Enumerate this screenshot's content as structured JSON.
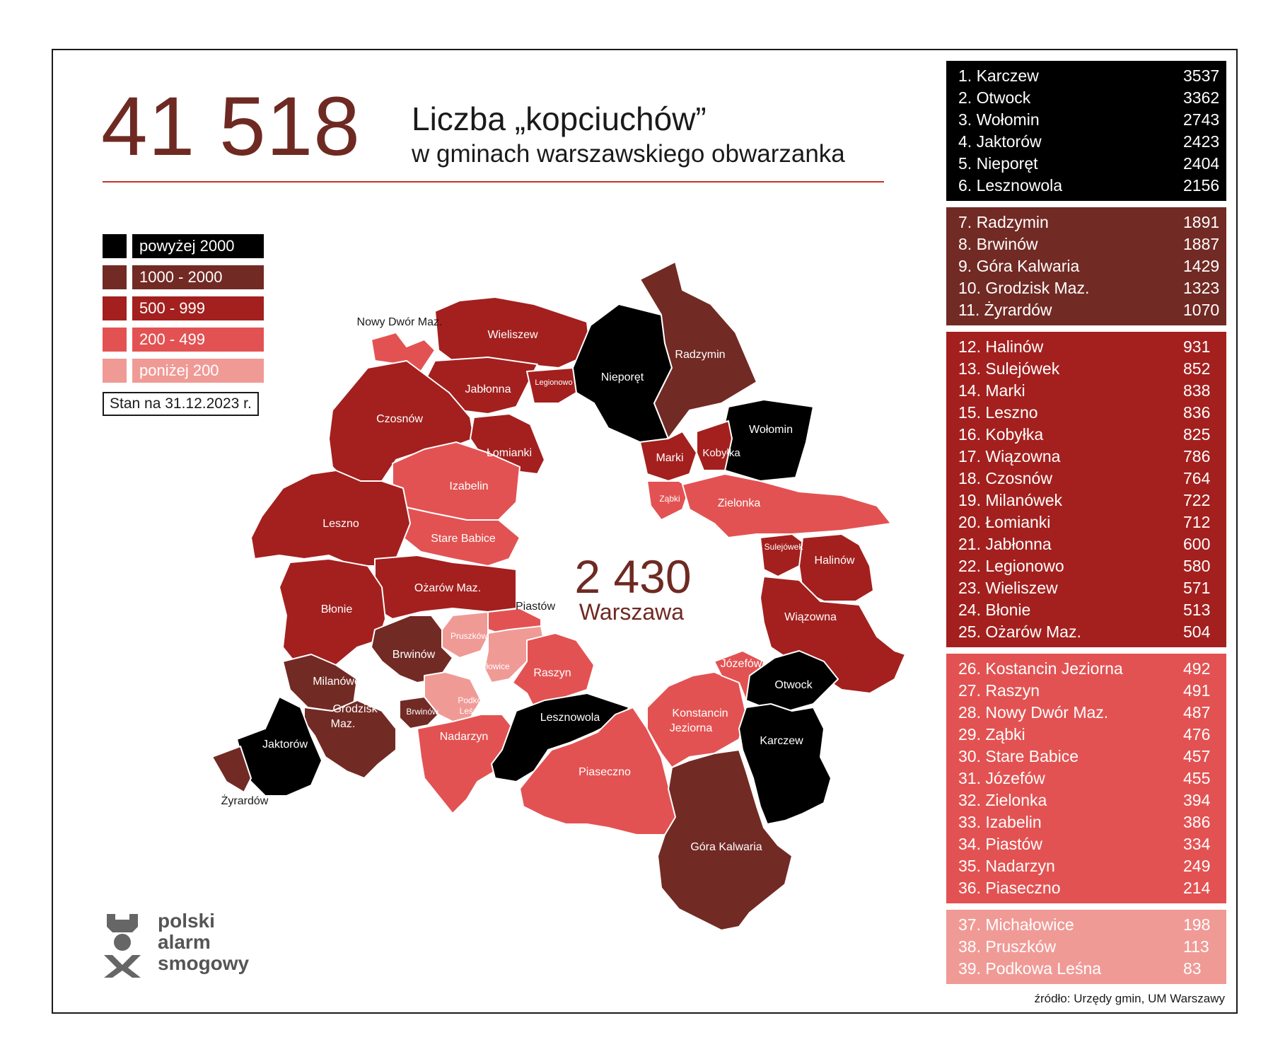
{
  "header": {
    "big_number": "41 518",
    "title": "Liczba „kopciuchów”",
    "subtitle": "w gminach warszawskiego obwarzanka"
  },
  "colors": {
    "above_2000": "#000000",
    "range_1000_2000": "#722a24",
    "range_500_999": "#a3201e",
    "range_200_499": "#e35252",
    "below_200": "#f09a96",
    "accent_red": "#c8322b",
    "warsaw_text": "#6e2a22"
  },
  "legend": {
    "items": [
      {
        "label": "powyżej 2000",
        "color": "#000000"
      },
      {
        "label": "1000 - 2000",
        "color": "#722a24"
      },
      {
        "label": "500 - 999",
        "color": "#a3201e"
      },
      {
        "label": "200 - 499",
        "color": "#e35252"
      },
      {
        "label": "poniżej 200",
        "color": "#f09a96"
      }
    ],
    "date_note": "Stan na 31.12.2023 r."
  },
  "warsaw": {
    "value": "2 430",
    "label": "Warszawa"
  },
  "map_labels": {
    "nowy_dwor": "Nowy Dwór Maz.",
    "wieliszew": "Wieliszew",
    "jablonna": "Jabłonna",
    "legionowo": "Legionowo",
    "nieporet": "Nieporęt",
    "radzymin": "Radzymin",
    "czosnow": "Czosnów",
    "lomianki": "Łomianki",
    "wolomin": "Wołomin",
    "marki": "Marki",
    "kobylka": "Kobyłka",
    "zabki": "Ząbki",
    "zielonka": "Zielonka",
    "izabelin": "Izabelin",
    "stare_babice": "Stare Babice",
    "leszno": "Leszno",
    "sulejowek": "Sulejówek",
    "halinow": "Halinów",
    "ozarow": "Ożarów Maz.",
    "piastow": "Piastów",
    "blonie": "Błonie",
    "wiazowna": "Wiązowna",
    "pruszkow": "Pruszków",
    "brwinow": "Brwinów",
    "michalowice": "Michałowice",
    "raszyn": "Raszyn",
    "jozefow": "Józefów",
    "otwock": "Otwock",
    "milanowek": "Milanówek",
    "grodzisk_1": "Grodzisk",
    "grodzisk_2": "Maz.",
    "brwinow_town": "Brwinów",
    "podkowa_1": "Podkowa",
    "podkowa_2": "Leśna",
    "lesznowola": "Lesznowola",
    "konstancin_1": "Konstancin",
    "konstancin_2": "Jeziorna",
    "jaktorow": "Jaktorów",
    "nadarzyn": "Nadarzyn",
    "piaseczno": "Piaseczno",
    "karczew": "Karczew",
    "zyrardow": "Żyrardów",
    "gora_kalwaria": "Góra Kalwaria"
  },
  "ranking": [
    {
      "color": "#000000",
      "text_color": "#ffffff",
      "items": [
        {
          "name": "1. Karczew",
          "value": "3537"
        },
        {
          "name": "2. Otwock",
          "value": "3362"
        },
        {
          "name": "3. Wołomin",
          "value": "2743"
        },
        {
          "name": "4. Jaktorów",
          "value": "2423"
        },
        {
          "name": "5. Nieporęt",
          "value": "2404"
        },
        {
          "name": "6. Lesznowola",
          "value": "2156"
        }
      ]
    },
    {
      "color": "#722a24",
      "text_color": "#ffffff",
      "items": [
        {
          "name": "7. Radzymin",
          "value": "1891"
        },
        {
          "name": "8. Brwinów",
          "value": "1887"
        },
        {
          "name": "9. Góra Kalwaria",
          "value": "1429"
        },
        {
          "name": "10. Grodzisk Maz.",
          "value": "1323"
        },
        {
          "name": "11. Żyrardów",
          "value": "1070"
        }
      ]
    },
    {
      "color": "#a3201e",
      "text_color": "#ffffff",
      "items": [
        {
          "name": "12. Halinów",
          "value": "931"
        },
        {
          "name": "13. Sulejówek",
          "value": "852"
        },
        {
          "name": "14. Marki",
          "value": "838"
        },
        {
          "name": "15. Leszno",
          "value": "836"
        },
        {
          "name": "16. Kobyłka",
          "value": "825"
        },
        {
          "name": "17. Wiązowna",
          "value": "786"
        },
        {
          "name": "18. Czosnów",
          "value": "764"
        },
        {
          "name": "19. Milanówek",
          "value": "722"
        },
        {
          "name": "20. Łomianki",
          "value": "712"
        },
        {
          "name": "21. Jabłonna",
          "value": "600"
        },
        {
          "name": "22. Legionowo",
          "value": "580"
        },
        {
          "name": "23. Wieliszew",
          "value": "571"
        },
        {
          "name": "24. Błonie",
          "value": "513"
        },
        {
          "name": "25. Ożarów Maz.",
          "value": "504"
        }
      ]
    },
    {
      "color": "#e35252",
      "text_color": "#ffffff",
      "items": [
        {
          "name": "26. Kostancin Jeziorna",
          "value": "492"
        },
        {
          "name": "27. Raszyn",
          "value": "491"
        },
        {
          "name": "28. Nowy Dwór Maz.",
          "value": "487"
        },
        {
          "name": "29. Ząbki",
          "value": "476"
        },
        {
          "name": "30. Stare Babice",
          "value": "457"
        },
        {
          "name": "31. Józefów",
          "value": "455"
        },
        {
          "name": "32. Zielonka",
          "value": "394"
        },
        {
          "name": "33. Izabelin",
          "value": "386"
        },
        {
          "name": "34. Piastów",
          "value": "334"
        },
        {
          "name": "35. Nadarzyn",
          "value": "249"
        },
        {
          "name": "36. Piaseczno",
          "value": "214"
        }
      ]
    },
    {
      "color": "#f09a96",
      "text_color": "#ffffff",
      "items": [
        {
          "name": "37. Michałowice",
          "value": "198"
        },
        {
          "name": "38. Pruszków",
          "value": "113"
        },
        {
          "name": "39. Podkowa Leśna",
          "value": "83"
        }
      ]
    }
  ],
  "logo": {
    "line1": "polski",
    "line2": "alarm",
    "line3": "smogowy"
  },
  "source": "źródło: Urzędy gmin, UM Warszawy"
}
